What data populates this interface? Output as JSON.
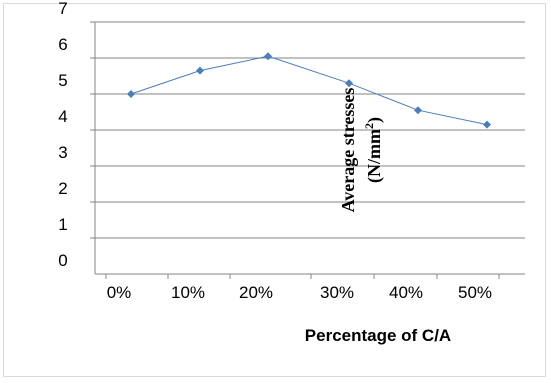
{
  "chart_data": {
    "type": "line",
    "title": "",
    "xlabel": "Percentage of C/A",
    "ylabel": "Average stresses",
    "ylabel_unit_prefix": "(N/mm",
    "ylabel_unit_exponent": "2",
    "ylabel_unit_suffix": ")",
    "categories": [
      "0%",
      "10%",
      "20%",
      "30%",
      "40%",
      "50%"
    ],
    "x": [
      1,
      2,
      3,
      4,
      5,
      6
    ],
    "series": [
      {
        "values": [
          5.0,
          5.65,
          6.05,
          5.3,
          4.55,
          4.15
        ],
        "color": "#4a7ebb"
      }
    ],
    "ylim": [
      0,
      7
    ],
    "yticks": [
      "0",
      "1",
      "2",
      "3",
      "4",
      "5",
      "6",
      "7"
    ],
    "grid": true,
    "legend": "none"
  }
}
